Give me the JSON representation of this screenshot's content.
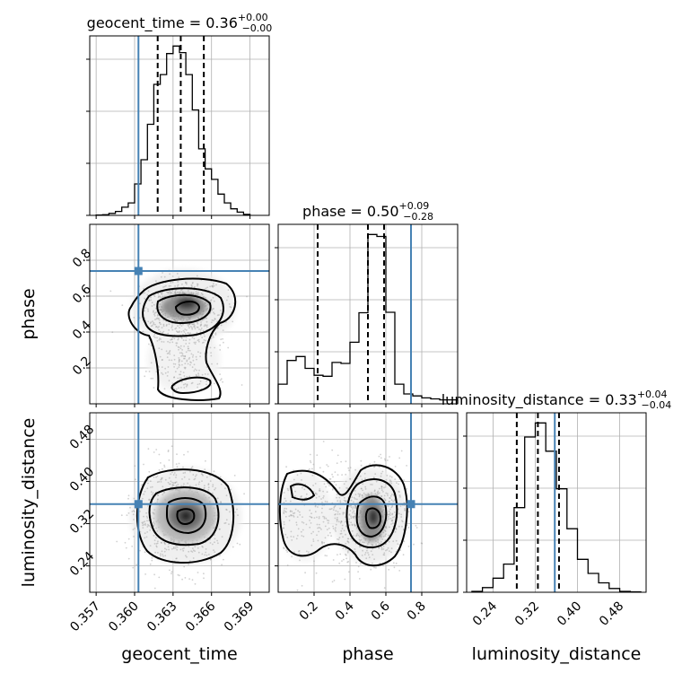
{
  "chart_data": {
    "type": "corner",
    "params": [
      "geocent_time",
      "phase",
      "luminosity_distance"
    ],
    "axis_labels": [
      "geocent_time",
      "phase",
      "luminosity_distance"
    ],
    "ranges": [
      [
        0.3565,
        0.3705
      ],
      [
        0.0,
        1.0
      ],
      [
        0.19,
        0.53
      ]
    ],
    "ticks": [
      [
        0.357,
        0.36,
        0.363,
        0.366,
        0.369
      ],
      [
        0.2,
        0.4,
        0.6,
        0.8
      ],
      [
        0.24,
        0.32,
        0.4,
        0.48
      ]
    ],
    "tick_labels": [
      [
        "0.357",
        "0.360",
        "0.363",
        "0.366",
        "0.369"
      ],
      [
        "0.2",
        "0.4",
        "0.6",
        "0.8"
      ],
      [
        "0.24",
        "0.32",
        "0.40",
        "0.48"
      ]
    ],
    "truths": [
      0.3603,
      0.74,
      0.357
    ],
    "titles": [
      {
        "name": "geocent_time",
        "value": "0.36",
        "plus": "+0.00",
        "minus": "−0.00"
      },
      {
        "name": "phase",
        "value": "0.50",
        "plus": "+0.09",
        "minus": "−0.28"
      },
      {
        "name": "luminosity_distance",
        "value": "0.33",
        "plus": "+0.04",
        "minus": "−0.04"
      }
    ],
    "quantiles": [
      [
        0.3618,
        0.3636,
        0.3654
      ],
      [
        0.22,
        0.5,
        0.59
      ],
      [
        0.285,
        0.325,
        0.365
      ]
    ],
    "histograms": [
      {
        "edges": [
          0.357,
          0.3575,
          0.358,
          0.3585,
          0.359,
          0.3595,
          0.36,
          0.3605,
          0.361,
          0.3615,
          0.362,
          0.3625,
          0.363,
          0.3635,
          0.364,
          0.3645,
          0.365,
          0.3655,
          0.366,
          0.3665,
          0.367,
          0.3675,
          0.368,
          0.3685,
          0.369
        ],
        "counts": [
          1,
          2,
          6,
          12,
          25,
          38,
          96,
          170,
          278,
          400,
          430,
          494,
          517,
          497,
          430,
          322,
          203,
          142,
          110,
          65,
          38,
          20,
          10,
          3
        ]
      },
      {
        "edges": [
          0.0,
          0.05,
          0.1,
          0.15,
          0.2,
          0.25,
          0.3,
          0.35,
          0.4,
          0.45,
          0.5,
          0.55,
          0.6,
          0.65,
          0.7,
          0.75,
          0.8,
          0.85,
          0.9,
          0.95,
          1.0
        ],
        "counts": [
          40,
          88,
          96,
          72,
          58,
          56,
          84,
          82,
          125,
          185,
          344,
          340,
          186,
          40,
          20,
          16,
          12,
          10,
          8,
          8
        ]
      },
      {
        "edges": [
          0.2,
          0.22,
          0.24,
          0.26,
          0.28,
          0.3,
          0.32,
          0.34,
          0.36,
          0.38,
          0.4,
          0.42,
          0.44,
          0.46,
          0.48,
          0.5,
          0.52
        ],
        "counts": [
          2,
          10,
          30,
          60,
          180,
          330,
          360,
          300,
          220,
          135,
          70,
          40,
          20,
          8,
          2,
          1
        ]
      }
    ]
  }
}
